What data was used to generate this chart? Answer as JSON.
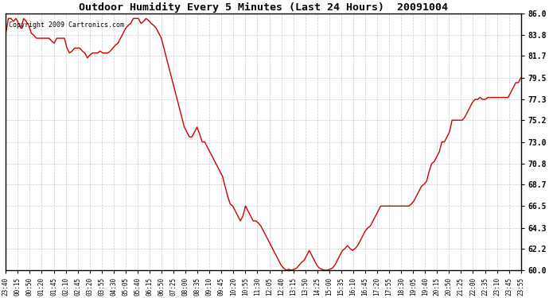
{
  "title": "Outdoor Humidity Every 5 Minutes (Last 24 Hours)  20091004",
  "copyright_text": "Copyright 2009 Cartronics.com",
  "line_color": "#cc0000",
  "bg_color": "#ffffff",
  "plot_bg_color": "#ffffff",
  "grid_color": "#bbbbbb",
  "ylim": [
    60.0,
    86.0
  ],
  "yticks": [
    60.0,
    62.2,
    64.3,
    66.5,
    68.7,
    70.8,
    73.0,
    75.2,
    77.3,
    79.5,
    81.7,
    83.8,
    86.0
  ],
  "x_labels": [
    "23:40",
    "00:15",
    "00:50",
    "01:20",
    "01:45",
    "02:10",
    "02:45",
    "03:20",
    "03:55",
    "04:30",
    "05:05",
    "05:40",
    "06:15",
    "06:50",
    "07:25",
    "08:00",
    "08:35",
    "09:10",
    "09:45",
    "10:20",
    "10:55",
    "11:30",
    "12:05",
    "12:40",
    "13:15",
    "13:50",
    "14:25",
    "15:00",
    "15:35",
    "16:10",
    "16:45",
    "17:20",
    "17:55",
    "18:30",
    "19:05",
    "19:40",
    "20:15",
    "20:50",
    "21:25",
    "22:00",
    "22:35",
    "23:10",
    "23:45",
    "23:55"
  ],
  "humidity": [
    84.0,
    85.5,
    85.5,
    85.2,
    85.5,
    85.0,
    84.5,
    85.5,
    85.2,
    84.8,
    84.0,
    83.8,
    83.5,
    83.5,
    83.5,
    83.5,
    83.5,
    83.5,
    83.2,
    83.0,
    83.5,
    83.5,
    83.5,
    83.5,
    82.5,
    82.0,
    82.2,
    82.5,
    82.5,
    82.5,
    82.2,
    82.0,
    81.5,
    81.8,
    82.0,
    82.0,
    82.0,
    82.2,
    82.0,
    82.0,
    82.0,
    82.2,
    82.5,
    82.8,
    83.0,
    83.5,
    84.0,
    84.5,
    84.8,
    85.0,
    85.5,
    85.5,
    85.5,
    85.0,
    85.2,
    85.5,
    85.3,
    85.0,
    84.8,
    84.5,
    84.0,
    83.5,
    82.5,
    81.5,
    80.5,
    79.5,
    78.5,
    77.5,
    76.5,
    75.5,
    74.5,
    74.0,
    73.5,
    73.5,
    74.0,
    74.5,
    73.8,
    73.0,
    73.0,
    72.5,
    72.0,
    71.5,
    71.0,
    70.5,
    70.0,
    69.5,
    68.5,
    67.5,
    66.7,
    66.5,
    66.0,
    65.5,
    65.0,
    65.5,
    66.5,
    66.0,
    65.5,
    65.0,
    65.0,
    64.8,
    64.5,
    64.0,
    63.5,
    63.0,
    62.5,
    62.0,
    61.5,
    61.0,
    60.5,
    60.2,
    60.0,
    60.1,
    60.0,
    60.1,
    60.2,
    60.5,
    60.8,
    61.0,
    61.5,
    62.0,
    61.5,
    61.0,
    60.5,
    60.2,
    60.1,
    60.0,
    60.0,
    60.1,
    60.2,
    60.5,
    61.0,
    61.5,
    62.0,
    62.2,
    62.5,
    62.2,
    62.0,
    62.2,
    62.5,
    63.0,
    63.5,
    64.0,
    64.3,
    64.5,
    65.0,
    65.5,
    66.0,
    66.5,
    66.5,
    66.5,
    66.5,
    66.5,
    66.5,
    66.5,
    66.5,
    66.5,
    66.5,
    66.5,
    66.5,
    66.7,
    67.0,
    67.5,
    68.0,
    68.5,
    68.7,
    69.0,
    70.0,
    70.8,
    71.0,
    71.5,
    72.0,
    73.0,
    73.0,
    73.5,
    74.0,
    75.2,
    75.2,
    75.2,
    75.2,
    75.2,
    75.5,
    76.0,
    76.5,
    77.0,
    77.3,
    77.3,
    77.5,
    77.3,
    77.3,
    77.5,
    77.5,
    77.5,
    77.5,
    77.5,
    77.5,
    77.5,
    77.5,
    77.5,
    78.0,
    78.5,
    79.0,
    79.0,
    79.5
  ]
}
